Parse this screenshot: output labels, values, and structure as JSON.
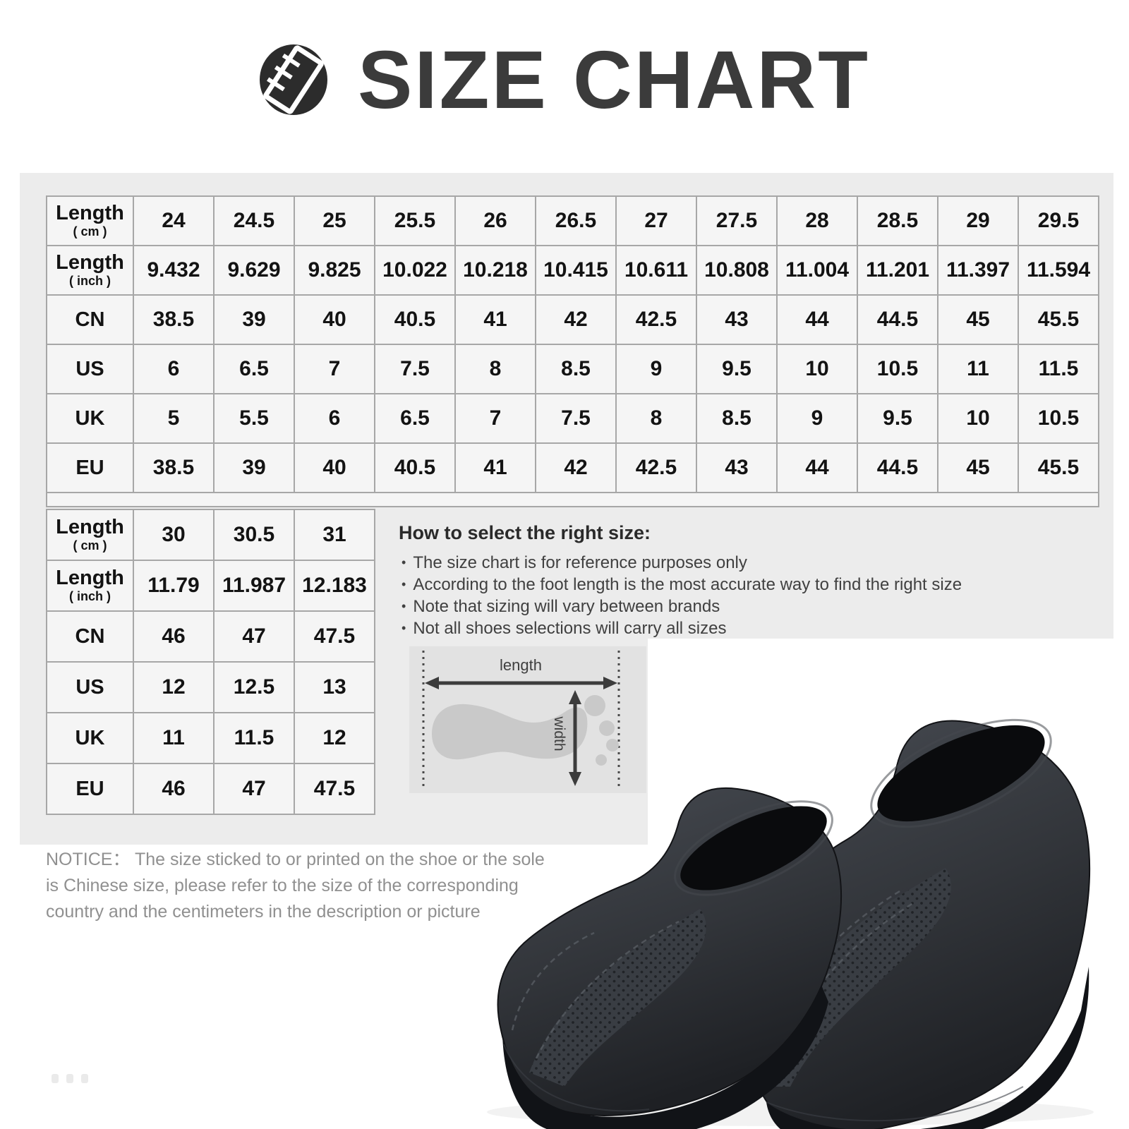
{
  "title": {
    "text": "SIZE CHART"
  },
  "colors": {
    "accent_dark": "#2c2c2c",
    "panel_bg": "#ececec",
    "cell_bg": "#f5f5f5",
    "cell_border": "#a7a7a7",
    "table_text": "#131313",
    "notice_text": "#909090",
    "shoe_black": "#1e2024"
  },
  "tables": {
    "main": {
      "rows": [
        {
          "label": "Length",
          "sublabel": "( cm )",
          "values": [
            "24",
            "24.5",
            "25",
            "25.5",
            "26",
            "26.5",
            "27",
            "27.5",
            "28",
            "28.5",
            "29",
            "29.5"
          ]
        },
        {
          "label": "Length",
          "sublabel": "( inch )",
          "values": [
            "9.432",
            "9.629",
            "9.825",
            "10.022",
            "10.218",
            "10.415",
            "10.611",
            "10.808",
            "11.004",
            "11.201",
            "11.397",
            "11.594"
          ]
        },
        {
          "label": "CN",
          "values": [
            "38.5",
            "39",
            "40",
            "40.5",
            "41",
            "42",
            "42.5",
            "43",
            "44",
            "44.5",
            "45",
            "45.5"
          ]
        },
        {
          "label": "US",
          "values": [
            "6",
            "6.5",
            "7",
            "7.5",
            "8",
            "8.5",
            "9",
            "9.5",
            "10",
            "10.5",
            "11",
            "11.5"
          ]
        },
        {
          "label": "UK",
          "values": [
            "5",
            "5.5",
            "6",
            "6.5",
            "7",
            "7.5",
            "8",
            "8.5",
            "9",
            "9.5",
            "10",
            "10.5"
          ]
        },
        {
          "label": "EU",
          "values": [
            "38.5",
            "39",
            "40",
            "40.5",
            "41",
            "42",
            "42.5",
            "43",
            "44",
            "44.5",
            "45",
            "45.5"
          ]
        }
      ]
    },
    "extra": {
      "rows": [
        {
          "label": "Length",
          "sublabel": "( cm )",
          "values": [
            "30",
            "30.5",
            "31"
          ]
        },
        {
          "label": "Length",
          "sublabel": "( inch )",
          "values": [
            "11.79",
            "11.987",
            "12.183"
          ]
        },
        {
          "label": "CN",
          "values": [
            "46",
            "47",
            "47.5"
          ]
        },
        {
          "label": "US",
          "values": [
            "12",
            "12.5",
            "13"
          ]
        },
        {
          "label": "UK",
          "values": [
            "11",
            "11.5",
            "12"
          ]
        },
        {
          "label": "EU",
          "values": [
            "46",
            "47",
            "47.5"
          ]
        }
      ]
    }
  },
  "how_to": {
    "heading": "How to select the right size:",
    "bullets": [
      "The size chart is for reference purposes only",
      "According to the foot length is the most accurate way to find the right size",
      "Note that sizing will vary between brands",
      "Not all shoes selections will carry all sizes"
    ]
  },
  "foot_diagram": {
    "length_label": "length",
    "width_label": "width"
  },
  "notice": {
    "lines": [
      "NOTICE： The size sticked to or printed on the shoe or the sole",
      "is Chinese size, please refer to the size of the corresponding",
      "country and the centimeters in the description or picture"
    ]
  }
}
